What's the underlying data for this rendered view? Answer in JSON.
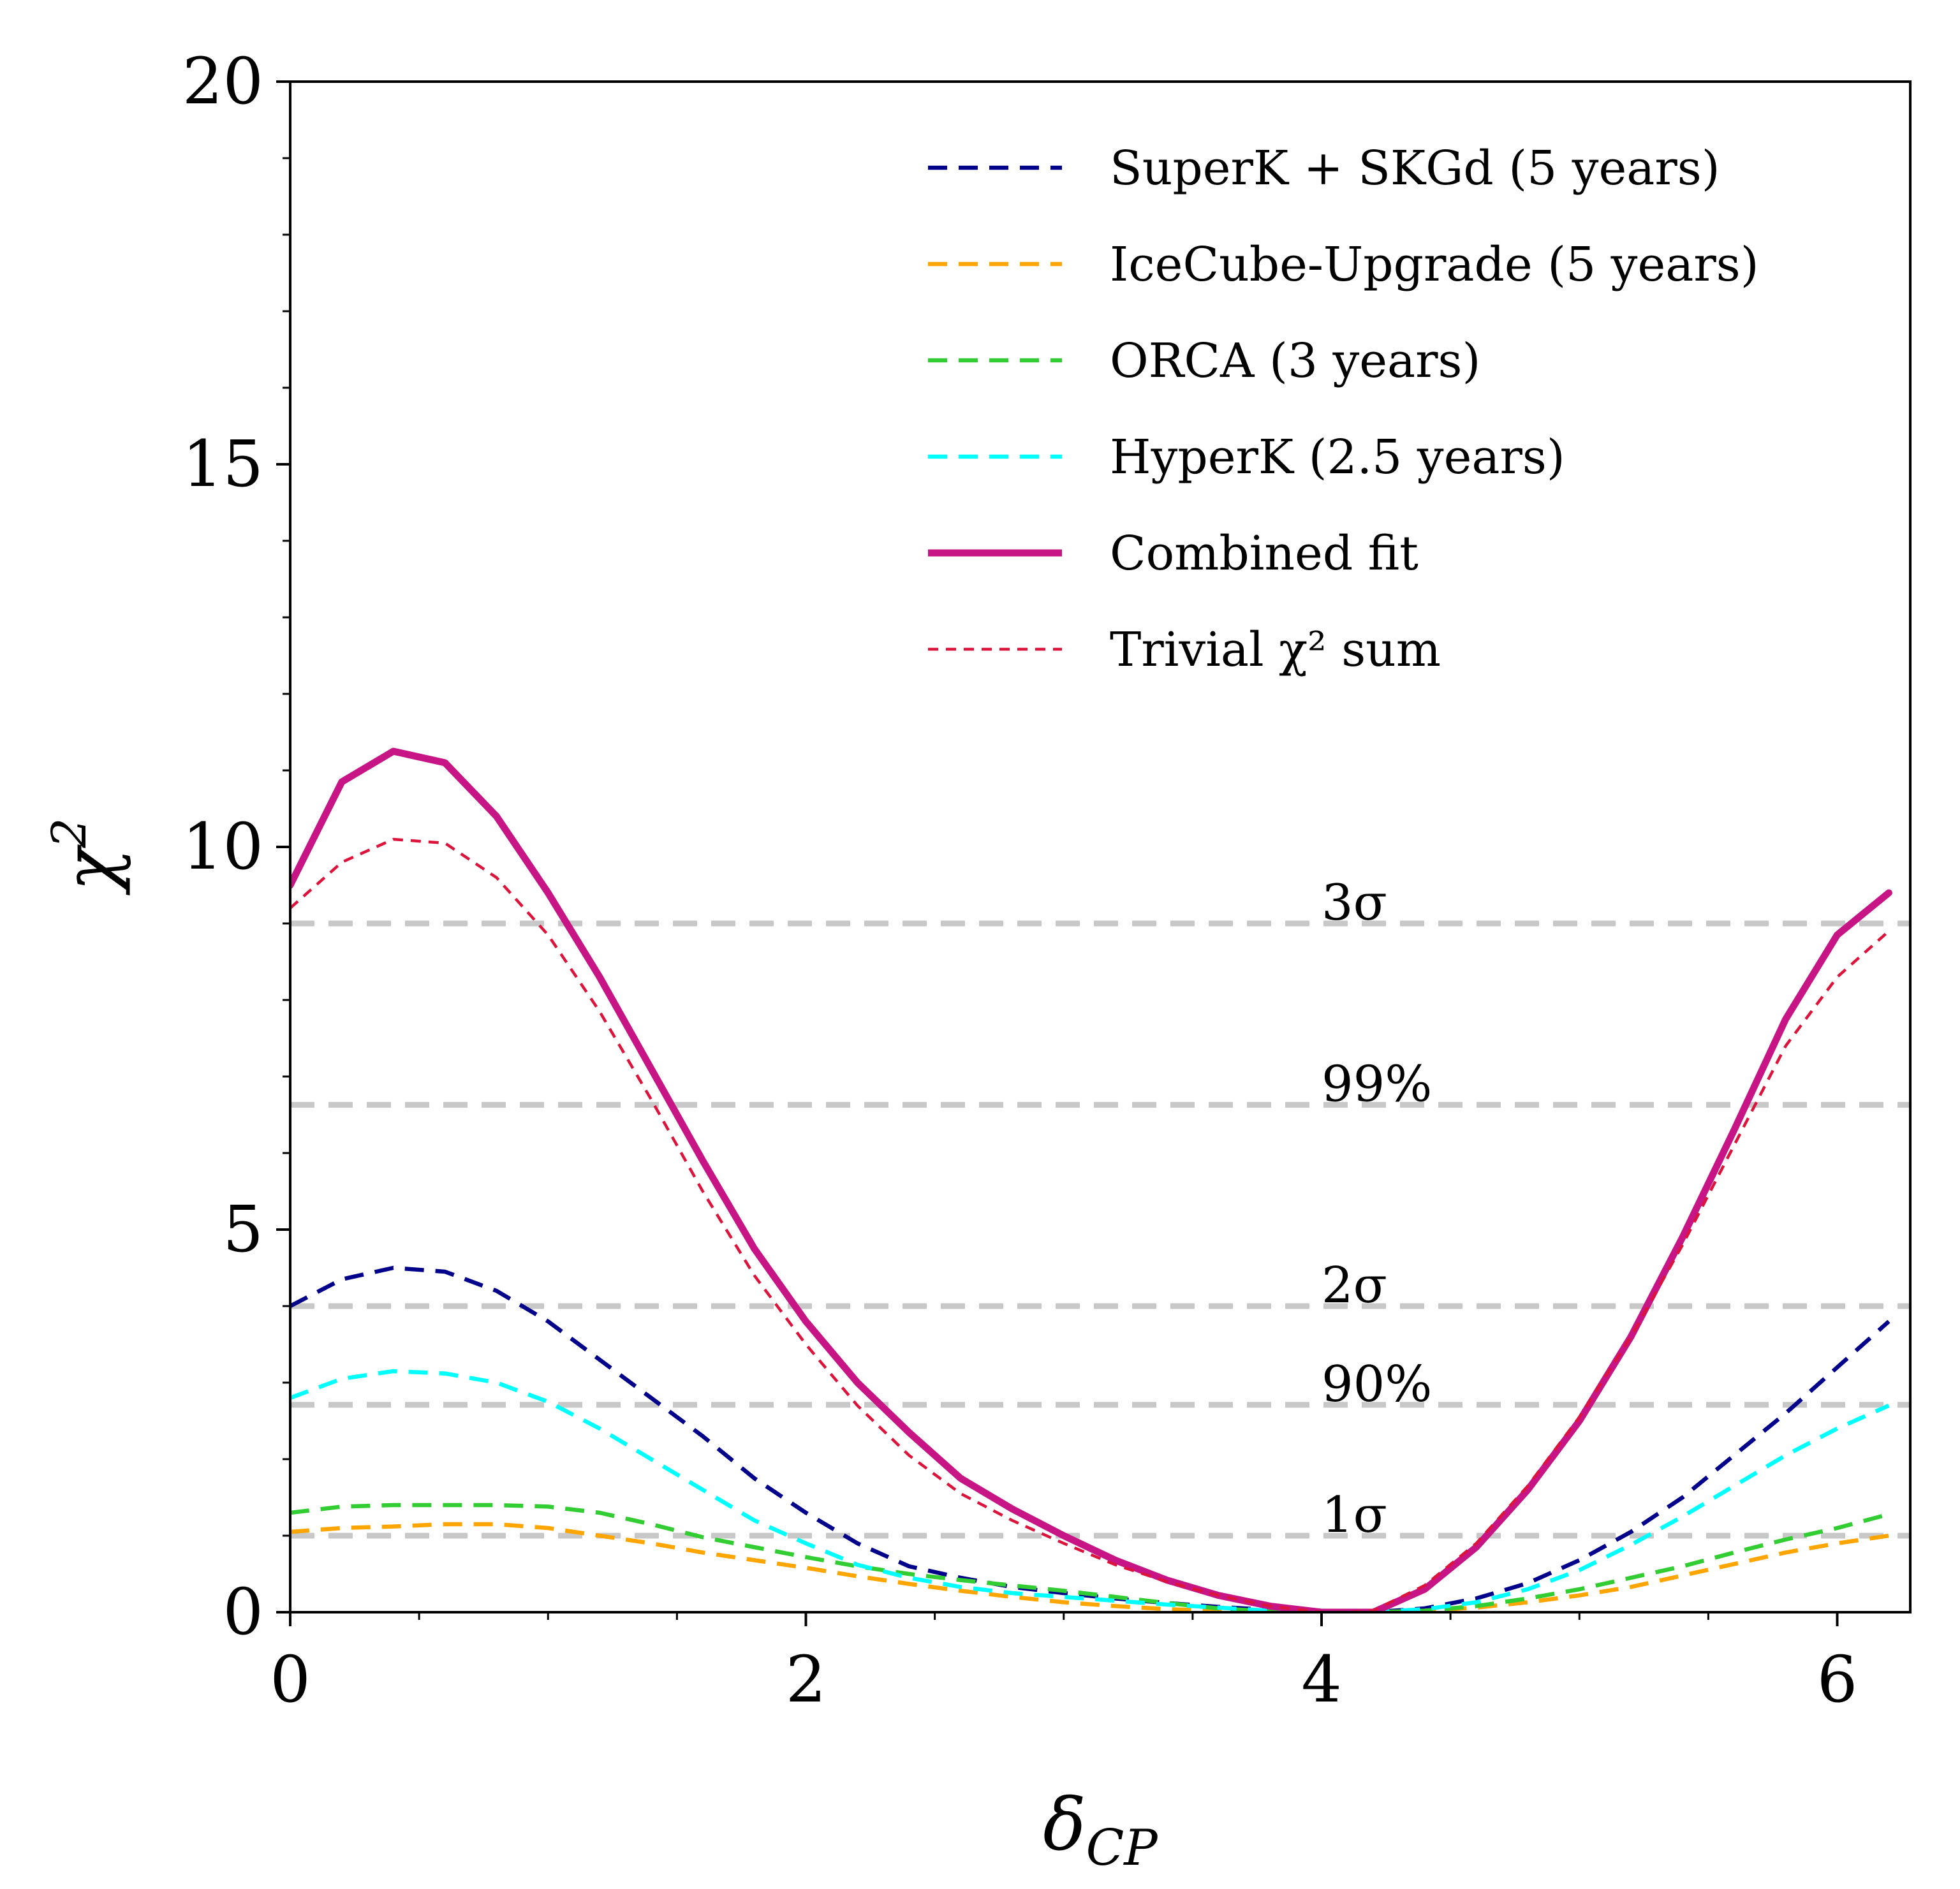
{
  "chart_data": {
    "type": "line",
    "xlabel": "δ_CP",
    "ylabel": "χ²",
    "xlim": [
      0,
      6.2832
    ],
    "ylim": [
      0,
      20
    ],
    "xticks": [
      0,
      2,
      4,
      6
    ],
    "xtick_labels": [
      "0",
      "2",
      "4",
      "6"
    ],
    "yticks": [
      0,
      5,
      10,
      15,
      20
    ],
    "ytick_labels": [
      "0",
      "5",
      "10",
      "15",
      "20"
    ],
    "legend_position": "top-right",
    "reference_lines": [
      {
        "label": "3σ",
        "value": 9.0
      },
      {
        "label": "99%",
        "value": 6.63
      },
      {
        "label": "2σ",
        "value": 4.0
      },
      {
        "label": "90%",
        "value": 2.71
      },
      {
        "label": "1σ",
        "value": 1.0
      }
    ],
    "reference_label_x": 4.0,
    "reference_color": "#c8c8c8",
    "x": [
      0.0,
      0.2,
      0.4,
      0.6,
      0.8,
      1.0,
      1.2,
      1.4,
      1.6,
      1.8,
      2.0,
      2.2,
      2.4,
      2.6,
      2.8,
      3.0,
      3.2,
      3.4,
      3.6,
      3.8,
      4.0,
      4.1,
      4.2,
      4.4,
      4.6,
      4.8,
      5.0,
      5.2,
      5.4,
      5.6,
      5.8,
      6.0,
      6.2
    ],
    "series": [
      {
        "name": "SuperK + SKGd (5 years)",
        "color": "#00008b",
        "style": "dashed",
        "width": "normal",
        "values": [
          4.0,
          4.35,
          4.5,
          4.45,
          4.2,
          3.8,
          3.3,
          2.8,
          2.3,
          1.75,
          1.3,
          0.9,
          0.6,
          0.45,
          0.33,
          0.25,
          0.18,
          0.12,
          0.07,
          0.03,
          0.0,
          0.0,
          0.0,
          0.05,
          0.18,
          0.38,
          0.68,
          1.05,
          1.5,
          2.05,
          2.6,
          3.2,
          3.8
        ]
      },
      {
        "name": "IceCube-Upgrade (5 years)",
        "color": "#ffa500",
        "style": "dashed",
        "width": "normal",
        "values": [
          1.05,
          1.1,
          1.12,
          1.15,
          1.15,
          1.1,
          1.0,
          0.9,
          0.78,
          0.68,
          0.58,
          0.47,
          0.37,
          0.28,
          0.2,
          0.13,
          0.08,
          0.04,
          0.02,
          0.0,
          0.0,
          0.0,
          0.0,
          0.02,
          0.06,
          0.13,
          0.22,
          0.33,
          0.48,
          0.63,
          0.78,
          0.9,
          1.0
        ]
      },
      {
        "name": "ORCA (3 years)",
        "color": "#32cd32",
        "style": "dashed",
        "width": "normal",
        "values": [
          1.3,
          1.38,
          1.4,
          1.4,
          1.4,
          1.38,
          1.3,
          1.15,
          0.98,
          0.85,
          0.72,
          0.6,
          0.5,
          0.42,
          0.35,
          0.28,
          0.2,
          0.12,
          0.05,
          0.01,
          0.0,
          0.0,
          0.0,
          0.02,
          0.08,
          0.18,
          0.3,
          0.45,
          0.6,
          0.78,
          0.95,
          1.1,
          1.28
        ]
      },
      {
        "name": "HyperK (2.5 years)",
        "color": "#00ffff",
        "style": "dashed",
        "width": "normal",
        "values": [
          2.8,
          3.05,
          3.15,
          3.12,
          3.0,
          2.75,
          2.4,
          2.0,
          1.6,
          1.2,
          0.9,
          0.62,
          0.45,
          0.33,
          0.25,
          0.2,
          0.15,
          0.1,
          0.06,
          0.02,
          0.0,
          0.0,
          0.0,
          0.04,
          0.13,
          0.3,
          0.55,
          0.88,
          1.25,
          1.65,
          2.05,
          2.4,
          2.7
        ]
      },
      {
        "name": "Combined fit",
        "color": "#c71585",
        "style": "solid",
        "width": "thick",
        "values": [
          9.5,
          10.85,
          11.25,
          11.1,
          10.4,
          9.4,
          8.3,
          7.1,
          5.9,
          4.75,
          3.8,
          3.0,
          2.35,
          1.75,
          1.35,
          1.0,
          0.68,
          0.42,
          0.22,
          0.08,
          0.0,
          0.0,
          0.0,
          0.3,
          0.85,
          1.6,
          2.5,
          3.6,
          4.9,
          6.3,
          7.75,
          8.85,
          9.4
        ]
      },
      {
        "name": "Trivial χ² sum",
        "color": "#dc143c",
        "style": "dashed",
        "width": "thin",
        "values": [
          9.2,
          9.8,
          10.1,
          10.05,
          9.6,
          8.85,
          7.85,
          6.7,
          5.5,
          4.4,
          3.5,
          2.7,
          2.05,
          1.55,
          1.2,
          0.9,
          0.62,
          0.4,
          0.22,
          0.08,
          0.0,
          0.0,
          0.02,
          0.35,
          0.9,
          1.65,
          2.55,
          3.6,
          4.8,
          6.1,
          7.4,
          8.3,
          8.9
        ]
      }
    ]
  }
}
